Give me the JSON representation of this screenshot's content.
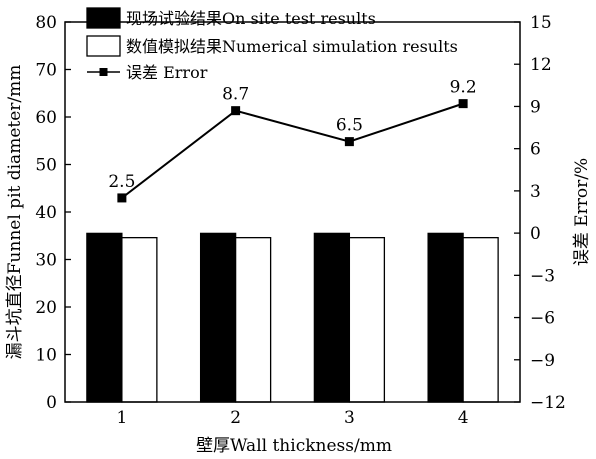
{
  "chart_data": {
    "type": "bar",
    "categories": [
      "1",
      "2",
      "3",
      "4"
    ],
    "xlabel": "壁厚Wall thickness/mm",
    "ylabel": "漏斗坑直径Funnel pit diameter/mm",
    "y2label": "误差 Error/%",
    "ylim": [
      0,
      80
    ],
    "y2lim": [
      -12,
      15
    ],
    "yticks": [
      0,
      10,
      20,
      30,
      40,
      50,
      60,
      70,
      80
    ],
    "y2ticks": [
      -12,
      -9,
      -6,
      -3,
      0,
      3,
      6,
      9,
      12,
      15
    ],
    "grid": false,
    "legend_position": "top-left",
    "series": [
      {
        "name": "现场试验结果On site test results",
        "kind": "bar",
        "fill": "#000000",
        "values": [
          35.5,
          35.5,
          35.5,
          35.5
        ]
      },
      {
        "name": "数值模拟结果Numerical simulation results",
        "kind": "bar",
        "fill": "#ffffff",
        "values": [
          34.6,
          34.6,
          34.6,
          34.6
        ]
      },
      {
        "name": "误差 Error",
        "kind": "line",
        "axis": "right",
        "marker": "square",
        "color": "#000000",
        "values": [
          2.5,
          8.7,
          6.5,
          9.2
        ],
        "labels": [
          "2.5",
          "8.7",
          "6.5",
          "9.2"
        ]
      }
    ]
  }
}
